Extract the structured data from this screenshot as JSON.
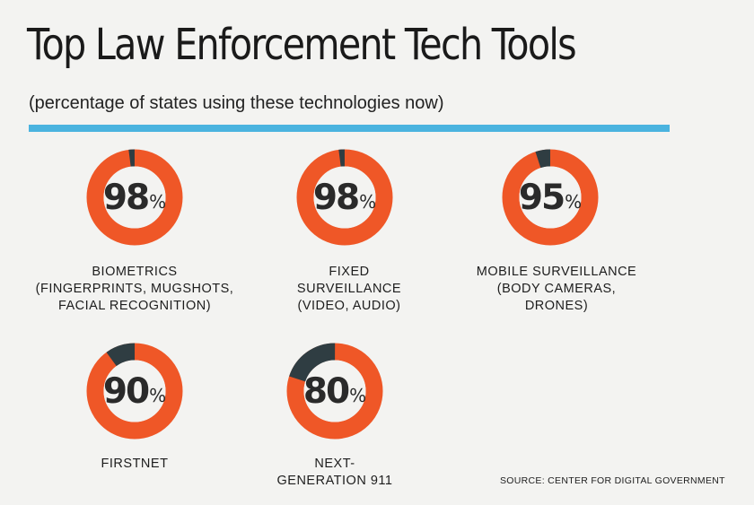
{
  "title": "Top Law Enforcement Tech Tools",
  "subtitle": "(percentage of states using these technologies now)",
  "source": "SOURCE: CENTER FOR DIGITAL GOVERNMENT",
  "colors": {
    "used": "#ef5727",
    "not_used": "#2f3d42",
    "accent_rule": "#4ab3df",
    "background": "#f3f3f1"
  },
  "percent_symbol": "%",
  "chart_data": {
    "type": "pie",
    "unit": "%",
    "items": [
      {
        "label": "BIOMETRICS\n(FINGERPRINTS, MUGSHOTS,\nFACIAL RECOGNITION)",
        "value": 98,
        "value_text": "98"
      },
      {
        "label": "FIXED\nSURVEILLANCE\n(VIDEO, AUDIO)",
        "value": 98,
        "value_text": "98"
      },
      {
        "label": "MOBILE SURVEILLANCE\n(BODY CAMERAS,\nDRONES)",
        "value": 95,
        "value_text": "95"
      },
      {
        "label": "FIRSTNET",
        "value": 90,
        "value_text": "90"
      },
      {
        "label": "NEXT-\nGENERATION 911",
        "value": 80,
        "value_text": "80"
      }
    ]
  }
}
